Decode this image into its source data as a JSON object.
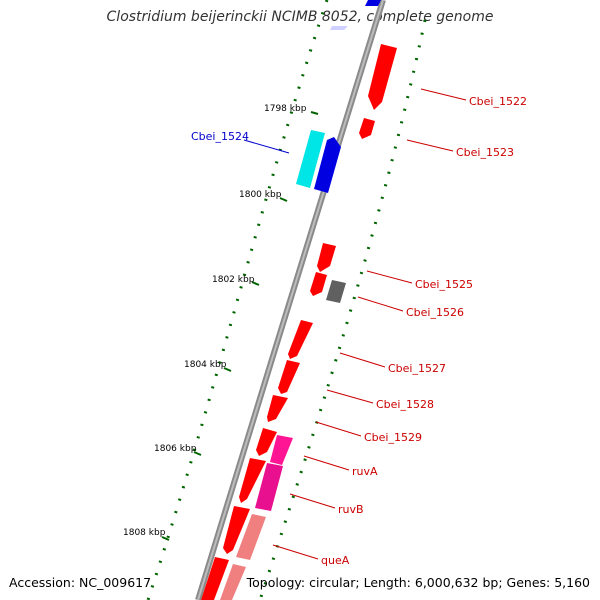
{
  "title": "Clostridium beijerinckii NCIMB 8052, complete genome",
  "accession": "Accession: NC_009617",
  "topology": "Topology: circular; Length: 6,000,632 bp; Genes: 5,160",
  "colors": {
    "backbone": "#8a8a8a",
    "cds_forward": "#0000e0",
    "cds_forward_light": "#00e5e5",
    "cds_reverse": "#ff0000",
    "cds_other": "#606060",
    "rna_magenta": "#ff1493",
    "rna_pink": "#f08080",
    "tick": "#006400",
    "label_forward": "#0000cc",
    "label_reverse": "#cc0000"
  },
  "kbp_ticks": [
    "1798 kbp",
    "1800 kbp",
    "1802 kbp",
    "1804 kbp",
    "1806 kbp",
    "1808 kbp"
  ],
  "genes": [
    {
      "name": "Cbei_1522",
      "strand": "reverse"
    },
    {
      "name": "Cbei_1523",
      "strand": "reverse"
    },
    {
      "name": "Cbei_1524",
      "strand": "forward"
    },
    {
      "name": "Cbei_1525",
      "strand": "reverse"
    },
    {
      "name": "Cbei_1526",
      "strand": "reverse"
    },
    {
      "name": "Cbei_1527",
      "strand": "reverse"
    },
    {
      "name": "Cbei_1528",
      "strand": "reverse"
    },
    {
      "name": "Cbei_1529",
      "strand": "reverse"
    },
    {
      "name": "ruvA",
      "strand": "reverse"
    },
    {
      "name": "ruvB",
      "strand": "reverse"
    },
    {
      "name": "queA",
      "strand": "reverse"
    }
  ]
}
